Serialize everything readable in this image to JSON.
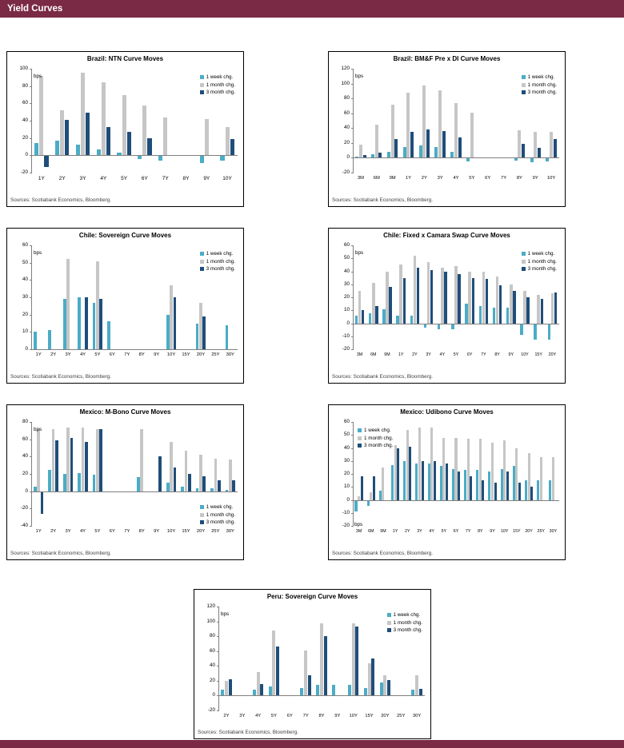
{
  "page": {
    "header_title": "Yield Curves"
  },
  "colors": {
    "header_bar": "#7A2A45",
    "axis": "#808080"
  },
  "series_colors": [
    "#4BACC6",
    "#C6C6C6",
    "#1F4E79"
  ],
  "legend_labels": [
    "1 week chg.",
    "1 month chg.",
    "3 month chg."
  ],
  "chart_data": [
    {
      "type": "bar",
      "title": "Brazil: NTN Curve Moves",
      "ylabel": "bps",
      "ylim": [
        -20,
        100
      ],
      "ystep": 20,
      "legend_position": "top-right",
      "bps_position": "top-left",
      "sources": "Sources: Scotiabank Economics, Bloomberg.",
      "categories": [
        "1Y",
        "2Y",
        "3Y",
        "4Y",
        "5Y",
        "6Y",
        "7Y",
        "8Y",
        "9Y",
        "10Y"
      ],
      "series": [
        {
          "name": "1 week chg.",
          "values": [
            14,
            17,
            12,
            7,
            3,
            -3,
            -5,
            0,
            -8,
            -5
          ]
        },
        {
          "name": "1 month chg.",
          "values": [
            92,
            52,
            95,
            84,
            70,
            58,
            44,
            0,
            42,
            33
          ]
        },
        {
          "name": "3 month chg.",
          "values": [
            -13,
            41,
            49,
            33,
            27,
            20,
            0,
            0,
            0,
            19
          ]
        }
      ]
    },
    {
      "type": "bar",
      "title": "Brazil: BM&F Pre x DI Curve Moves",
      "ylabel": "bps",
      "ylim": [
        -20,
        120
      ],
      "ystep": 20,
      "legend_position": "top-right",
      "bps_position": "top-left",
      "sources": "Sources: Scotiabank Economics, Bloomberg.",
      "categories": [
        "3M",
        "6M",
        "9M",
        "1Y",
        "2Y",
        "3Y",
        "4Y",
        "5Y",
        "6Y",
        "7Y",
        "8Y",
        "9Y",
        "10Y"
      ],
      "series": [
        {
          "name": "1 week chg.",
          "values": [
            2,
            5,
            8,
            15,
            17,
            15,
            8,
            -4,
            0,
            0,
            -3,
            -5,
            -4
          ]
        },
        {
          "name": "1 month chg.",
          "values": [
            18,
            45,
            72,
            88,
            97,
            91,
            74,
            61,
            0,
            0,
            37,
            35,
            35
          ]
        },
        {
          "name": "3 month chg.",
          "values": [
            4,
            7,
            25,
            35,
            38,
            36,
            27,
            0,
            0,
            0,
            19,
            13,
            25
          ]
        }
      ]
    },
    {
      "type": "bar",
      "title": "Chile: Sovereign Curve Moves",
      "ylabel": "bps",
      "ylim": [
        0,
        60
      ],
      "ystep": 10,
      "legend_position": "top-right",
      "bps_position": "top-left",
      "sources": "Sources: Scotiabank Economics, Bloomberg.",
      "categories": [
        "1Y",
        "2Y",
        "3Y",
        "4Y",
        "5Y",
        "6Y",
        "7Y",
        "8Y",
        "9Y",
        "10Y",
        "15Y",
        "20Y",
        "25Y",
        "30Y"
      ],
      "series": [
        {
          "name": "1 week chg.",
          "values": [
            10,
            11,
            29,
            30,
            27,
            16,
            0,
            0,
            0,
            20,
            0,
            15,
            0,
            14
          ]
        },
        {
          "name": "1 month chg.",
          "values": [
            0,
            0,
            52,
            0,
            51,
            0,
            0,
            0,
            0,
            37,
            0,
            27,
            0,
            0
          ]
        },
        {
          "name": "3 month chg.",
          "values": [
            0,
            0,
            0,
            30,
            29,
            0,
            0,
            0,
            0,
            30,
            0,
            19,
            0,
            0
          ]
        }
      ]
    },
    {
      "type": "bar",
      "title": "Chile: Fixed x Camara Swap Curve Moves",
      "ylabel": "bps",
      "ylim": [
        -20,
        60
      ],
      "ystep": 10,
      "legend_position": "top-right",
      "bps_position": "top-left",
      "sources": "Sources: Scotiabank Economics, Bloomberg.",
      "categories": [
        "3M",
        "6M",
        "9M",
        "1Y",
        "2Y",
        "3Y",
        "4Y",
        "5Y",
        "6Y",
        "7Y",
        "8Y",
        "9Y",
        "10Y",
        "15Y",
        "20Y"
      ],
      "series": [
        {
          "name": "1 week chg.",
          "values": [
            6,
            8,
            11,
            6,
            6,
            -3,
            -4,
            -4,
            15,
            13,
            12,
            12,
            -8,
            -12,
            -12
          ]
        },
        {
          "name": "1 month chg.",
          "values": [
            25,
            31,
            40,
            45,
            52,
            47,
            43,
            44,
            40,
            40,
            36,
            30,
            25,
            22,
            23
          ]
        },
        {
          "name": "3 month chg.",
          "values": [
            10,
            13,
            28,
            35,
            43,
            41,
            40,
            38,
            35,
            34,
            29,
            25,
            20,
            19,
            24
          ]
        }
      ]
    },
    {
      "type": "bar",
      "title": "Mexico: M-Bono Curve Moves",
      "ylabel": "bps",
      "ylim": [
        -40,
        80
      ],
      "ystep": 20,
      "legend_position": "bottom-right",
      "bps_position": "top-left",
      "sources": "Sources: Scotiabank Economics, Bloomberg.",
      "categories": [
        "1Y",
        "2Y",
        "3Y",
        "4Y",
        "5Y",
        "6Y",
        "7Y",
        "8Y",
        "9Y",
        "10Y",
        "15Y",
        "20Y",
        "25Y",
        "30Y"
      ],
      "series": [
        {
          "name": "1 week chg.",
          "values": [
            5,
            25,
            20,
            21,
            19,
            0,
            0,
            16,
            0,
            10,
            5,
            3,
            3,
            2
          ]
        },
        {
          "name": "1 month chg.",
          "values": [
            72,
            72,
            74,
            74,
            72,
            0,
            0,
            72,
            0,
            57,
            47,
            42,
            38,
            37
          ]
        },
        {
          "name": "3 month chg.",
          "values": [
            -25,
            59,
            62,
            57,
            72,
            0,
            0,
            0,
            40,
            27,
            20,
            17,
            13,
            13
          ]
        }
      ]
    },
    {
      "type": "bar",
      "title": "Mexico: Udibono Curve Moves",
      "ylabel": "bps",
      "ylim": [
        -20,
        60
      ],
      "ystep": 10,
      "legend_position": "top-left",
      "bps_position": "bottom-left",
      "sources": "Sources: Scotiabank Economics, Bloomberg.",
      "categories": [
        "3M",
        "6M",
        "9M",
        "1Y",
        "2Y",
        "3Y",
        "4Y",
        "5Y",
        "6Y",
        "7Y",
        "8Y",
        "9Y",
        "10Y",
        "15Y",
        "20Y",
        "25Y",
        "30Y"
      ],
      "series": [
        {
          "name": "1 week chg.",
          "values": [
            -8,
            -4,
            7,
            27,
            30,
            28,
            28,
            26,
            24,
            23,
            23,
            22,
            24,
            26,
            15,
            15,
            15
          ]
        },
        {
          "name": "1 month chg.",
          "values": [
            3,
            6,
            25,
            42,
            54,
            56,
            56,
            48,
            48,
            47,
            47,
            44,
            46,
            40,
            36,
            33,
            33
          ]
        },
        {
          "name": "3 month chg.",
          "values": [
            18,
            18,
            0,
            40,
            41,
            30,
            30,
            28,
            22,
            18,
            15,
            13,
            22,
            13,
            10,
            0,
            0
          ]
        }
      ]
    },
    {
      "type": "bar",
      "title": "Peru: Sovereign Curve Moves",
      "ylabel": "bps",
      "ylim": [
        -20,
        120
      ],
      "ystep": 20,
      "legend_position": "top-right",
      "bps_position": "top-left",
      "sources": "Sources: Scotiabank Economics, Bloomberg.",
      "categories": [
        "2Y",
        "3Y",
        "4Y",
        "5Y",
        "6Y",
        "7Y",
        "8Y",
        "9Y",
        "10Y",
        "15Y",
        "20Y",
        "25Y",
        "30Y"
      ],
      "series": [
        {
          "name": "1 week chg.",
          "values": [
            8,
            0,
            8,
            12,
            0,
            10,
            15,
            15,
            14,
            10,
            18,
            0,
            8
          ]
        },
        {
          "name": "1 month chg.",
          "values": [
            20,
            0,
            32,
            88,
            0,
            61,
            97,
            0,
            97,
            44,
            27,
            0,
            27
          ]
        },
        {
          "name": "3 month chg.",
          "values": [
            22,
            0,
            16,
            66,
            0,
            27,
            80,
            0,
            93,
            50,
            21,
            0,
            9
          ]
        }
      ]
    }
  ]
}
